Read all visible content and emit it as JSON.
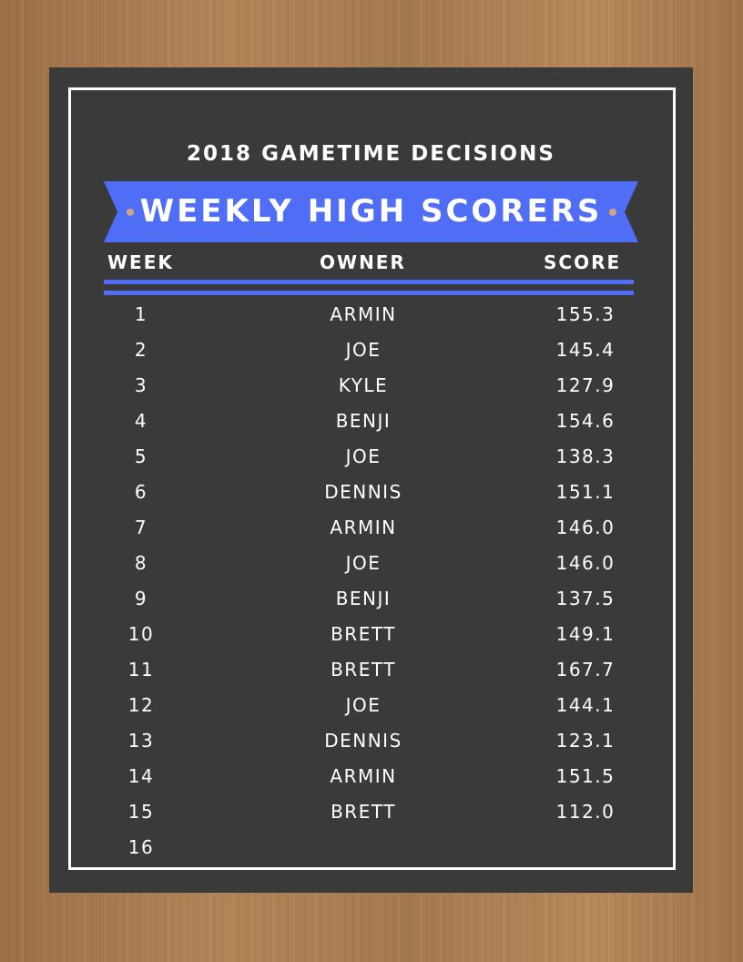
{
  "subtitle": "2018 GAMETIME DECISIONS",
  "banner_title": "WEEKLY HIGH SCORERS",
  "columns": {
    "week": "WEEK",
    "owner": "OWNER",
    "score": "SCORE"
  },
  "colors": {
    "board": "#3a3a3a",
    "accent": "#4f6df5",
    "dot": "#d1a47a",
    "text": "#ffffff"
  },
  "rows": [
    {
      "week": "1",
      "owner": "ARMIN",
      "score": "155.3"
    },
    {
      "week": "2",
      "owner": "JOE",
      "score": "145.4"
    },
    {
      "week": "3",
      "owner": "KYLE",
      "score": "127.9"
    },
    {
      "week": "4",
      "owner": "BENJI",
      "score": "154.6"
    },
    {
      "week": "5",
      "owner": "JOE",
      "score": "138.3"
    },
    {
      "week": "6",
      "owner": "DENNIS",
      "score": "151.1"
    },
    {
      "week": "7",
      "owner": "ARMIN",
      "score": "146.0"
    },
    {
      "week": "8",
      "owner": "JOE",
      "score": "146.0"
    },
    {
      "week": "9",
      "owner": "BENJI",
      "score": "137.5"
    },
    {
      "week": "10",
      "owner": "BRETT",
      "score": "149.1"
    },
    {
      "week": "11",
      "owner": "BRETT",
      "score": "167.7"
    },
    {
      "week": "12",
      "owner": "JOE",
      "score": "144.1"
    },
    {
      "week": "13",
      "owner": "DENNIS",
      "score": "123.1"
    },
    {
      "week": "14",
      "owner": "ARMIN",
      "score": "151.5"
    },
    {
      "week": "15",
      "owner": "BRETT",
      "score": "112.0"
    },
    {
      "week": "16",
      "owner": "",
      "score": ""
    }
  ]
}
